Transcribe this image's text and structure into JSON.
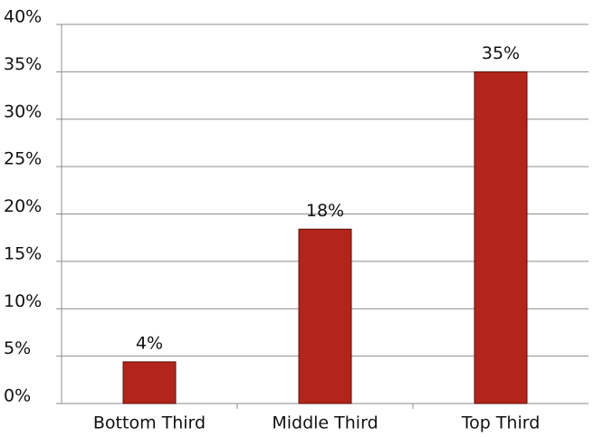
{
  "chart_data": {
    "type": "bar",
    "categories": [
      "Bottom Third",
      "Middle Third",
      "Top Third"
    ],
    "values": [
      4.4,
      18.4,
      35
    ],
    "value_labels": [
      "4%",
      "18%",
      "35%"
    ],
    "color": "#b3241a",
    "ylim": [
      0,
      40
    ],
    "yticks": [
      {
        "value": 0,
        "label": "0%"
      },
      {
        "value": 5,
        "label": "5%"
      },
      {
        "value": 10,
        "label": "10%"
      },
      {
        "value": 15,
        "label": "15%"
      },
      {
        "value": 20,
        "label": "20%"
      },
      {
        "value": 25,
        "label": "25%"
      },
      {
        "value": 30,
        "label": "30%"
      },
      {
        "value": 35,
        "label": "35%"
      },
      {
        "value": 40,
        "label": "40%"
      }
    ],
    "grid": true
  }
}
